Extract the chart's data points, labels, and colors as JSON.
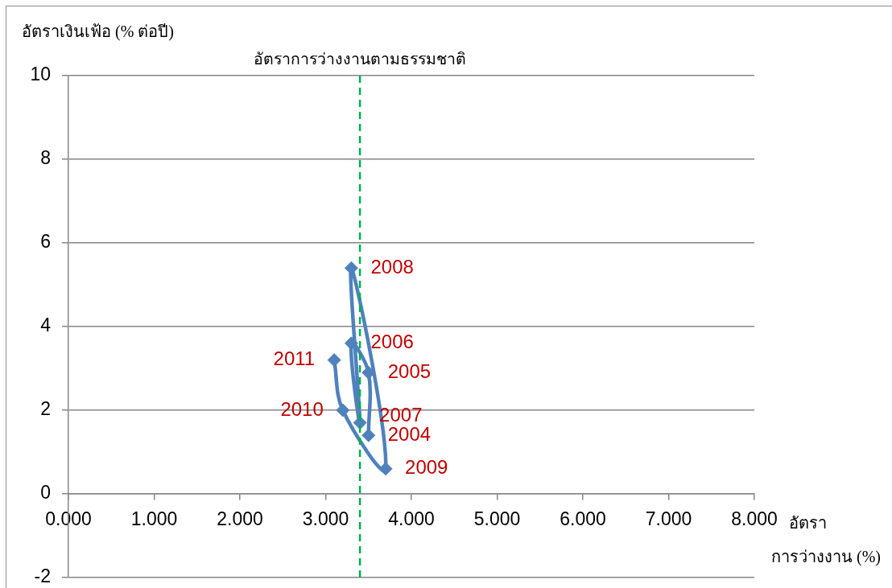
{
  "chart_data": {
    "type": "line",
    "xlabel": "อัตรา\nการว่างงาน (%)",
    "ylabel": "อัตราเงินเฟ้อ (% ต่อปี)",
    "x": [
      3.5,
      3.5,
      3.3,
      3.4,
      3.3,
      3.7,
      3.2,
      3.1
    ],
    "series": [
      {
        "color": "#4f81bd",
        "values": [
          1.4,
          2.9,
          3.6,
          1.7,
          5.4,
          0.6,
          2.0,
          3.2
        ]
      }
    ],
    "xlim": [
      0,
      8
    ],
    "xticks": [
      {
        "value": 0,
        "label": "0.000"
      },
      {
        "value": 1,
        "label": "1.000"
      },
      {
        "value": 2,
        "label": "2.000"
      },
      {
        "value": 3,
        "label": "3.000"
      },
      {
        "value": 4,
        "label": "4.000"
      },
      {
        "value": 5,
        "label": "5.000"
      },
      {
        "value": 6,
        "label": "6.000"
      },
      {
        "value": 7,
        "label": "7.000"
      },
      {
        "value": 8,
        "label": "8.000"
      }
    ],
    "ylim": [
      -2,
      10
    ],
    "yticks": [
      -2,
      0,
      2,
      4,
      6,
      8,
      10
    ],
    "grid": "y",
    "marker": "diamond",
    "ref_lines": [
      {
        "axis": "x",
        "value": 3.4,
        "label": "อัตราการว่างงานตามธรรมชาติ",
        "color": "#00b050",
        "line_style": "dashed"
      }
    ],
    "annotations": [
      {
        "text": "2004",
        "x": 3.5,
        "y": 1.4
      },
      {
        "text": "2005",
        "x": 3.5,
        "y": 2.9
      },
      {
        "text": "2006",
        "x": 3.3,
        "y": 3.6
      },
      {
        "text": "2007",
        "x": 3.4,
        "y": 1.7
      },
      {
        "text": "2008",
        "x": 3.3,
        "y": 5.4
      },
      {
        "text": "2009",
        "x": 3.7,
        "y": 0.6
      },
      {
        "text": "2010",
        "x": 3.2,
        "y": 2.0
      },
      {
        "text": "2011",
        "x": 3.1,
        "y": 3.2
      }
    ]
  }
}
